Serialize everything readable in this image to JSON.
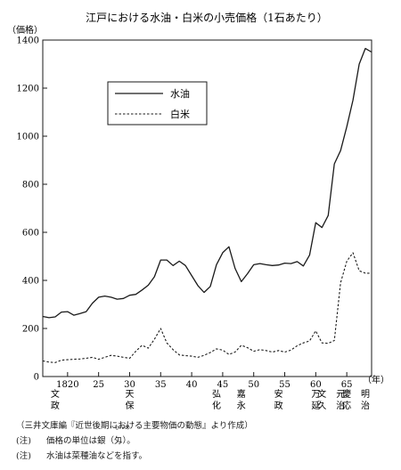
{
  "chart_data": {
    "type": "line",
    "title": "江戸における水油・白米の小売価格（1石あたり）",
    "ylabel": "（価格）",
    "xlabel": "（年）",
    "ylim": [
      0,
      1400
    ],
    "xlim": [
      1816,
      1869
    ],
    "yticks": [
      0,
      200,
      400,
      600,
      800,
      1000,
      1200,
      1400
    ],
    "xticks": [
      {
        "x": 1820,
        "label": "1820"
      },
      {
        "x": 1825,
        "label": "25"
      },
      {
        "x": 1830,
        "label": "30"
      },
      {
        "x": 1835,
        "label": "35"
      },
      {
        "x": 1840,
        "label": "40"
      },
      {
        "x": 1845,
        "label": "45"
      },
      {
        "x": 1850,
        "label": "50"
      },
      {
        "x": 1855,
        "label": "55"
      },
      {
        "x": 1860,
        "label": "60"
      },
      {
        "x": 1865,
        "label": "65"
      }
    ],
    "eras": [
      {
        "x": 1818,
        "label": "文政"
      },
      {
        "x": 1830,
        "label": "天保"
      },
      {
        "x": 1844,
        "label": "弘化"
      },
      {
        "x": 1848,
        "label": "嘉永"
      },
      {
        "x": 1854,
        "label": "安政"
      },
      {
        "x": 1860,
        "label": "万延"
      },
      {
        "x": 1861,
        "label": "文久"
      },
      {
        "x": 1864,
        "label": "元治"
      },
      {
        "x": 1865,
        "label": "慶応"
      },
      {
        "x": 1868,
        "label": "明治"
      }
    ],
    "legend_position": "top-left",
    "series": [
      {
        "name": "水油",
        "style": "solid",
        "x": [
          1816,
          1817,
          1818,
          1819,
          1820,
          1821,
          1822,
          1823,
          1824,
          1825,
          1826,
          1827,
          1828,
          1829,
          1830,
          1831,
          1832,
          1833,
          1834,
          1835,
          1836,
          1837,
          1838,
          1839,
          1840,
          1841,
          1842,
          1843,
          1844,
          1845,
          1846,
          1847,
          1848,
          1849,
          1850,
          1851,
          1852,
          1853,
          1854,
          1855,
          1856,
          1857,
          1858,
          1859,
          1860,
          1861,
          1862,
          1863,
          1864,
          1865,
          1866,
          1867,
          1868,
          1869
        ],
        "y": [
          250,
          245,
          248,
          268,
          270,
          255,
          262,
          270,
          305,
          330,
          335,
          330,
          322,
          325,
          338,
          342,
          360,
          380,
          415,
          485,
          485,
          462,
          480,
          462,
          420,
          378,
          350,
          375,
          465,
          515,
          540,
          450,
          395,
          428,
          465,
          470,
          465,
          462,
          464,
          472,
          470,
          478,
          460,
          505,
          640,
          620,
          670,
          885,
          940,
          1040,
          1150,
          1300,
          1365,
          1350
        ]
      },
      {
        "name": "白米",
        "style": "dashed",
        "x": [
          1816,
          1817,
          1818,
          1819,
          1820,
          1821,
          1822,
          1823,
          1824,
          1825,
          1826,
          1827,
          1828,
          1829,
          1830,
          1831,
          1832,
          1833,
          1834,
          1835,
          1836,
          1837,
          1838,
          1839,
          1840,
          1841,
          1842,
          1843,
          1844,
          1845,
          1846,
          1847,
          1848,
          1849,
          1850,
          1851,
          1852,
          1853,
          1854,
          1855,
          1856,
          1857,
          1858,
          1859,
          1860,
          1861,
          1862,
          1863,
          1864,
          1865,
          1866,
          1867,
          1868,
          1869
        ],
        "y": [
          65,
          60,
          58,
          68,
          70,
          72,
          73,
          76,
          80,
          72,
          80,
          88,
          85,
          80,
          76,
          105,
          130,
          118,
          155,
          200,
          140,
          112,
          90,
          87,
          85,
          80,
          88,
          100,
          115,
          110,
          92,
          102,
          130,
          120,
          105,
          112,
          108,
          102,
          108,
          102,
          110,
          128,
          140,
          148,
          190,
          140,
          138,
          150,
          390,
          480,
          515,
          440,
          430,
          430
        ]
      }
    ]
  },
  "notes": {
    "source": "（三井文庫編『近世後期における主要物価の動態』より作成）",
    "note1_label": "(注)",
    "note1_before": "価格の単位は銀（",
    "note1_unit": "匁",
    "note1_ruby": "もんめ",
    "note1_after": "）。",
    "note2_label": "(注)",
    "note2_text": "水油は菜種油などを指す。"
  }
}
